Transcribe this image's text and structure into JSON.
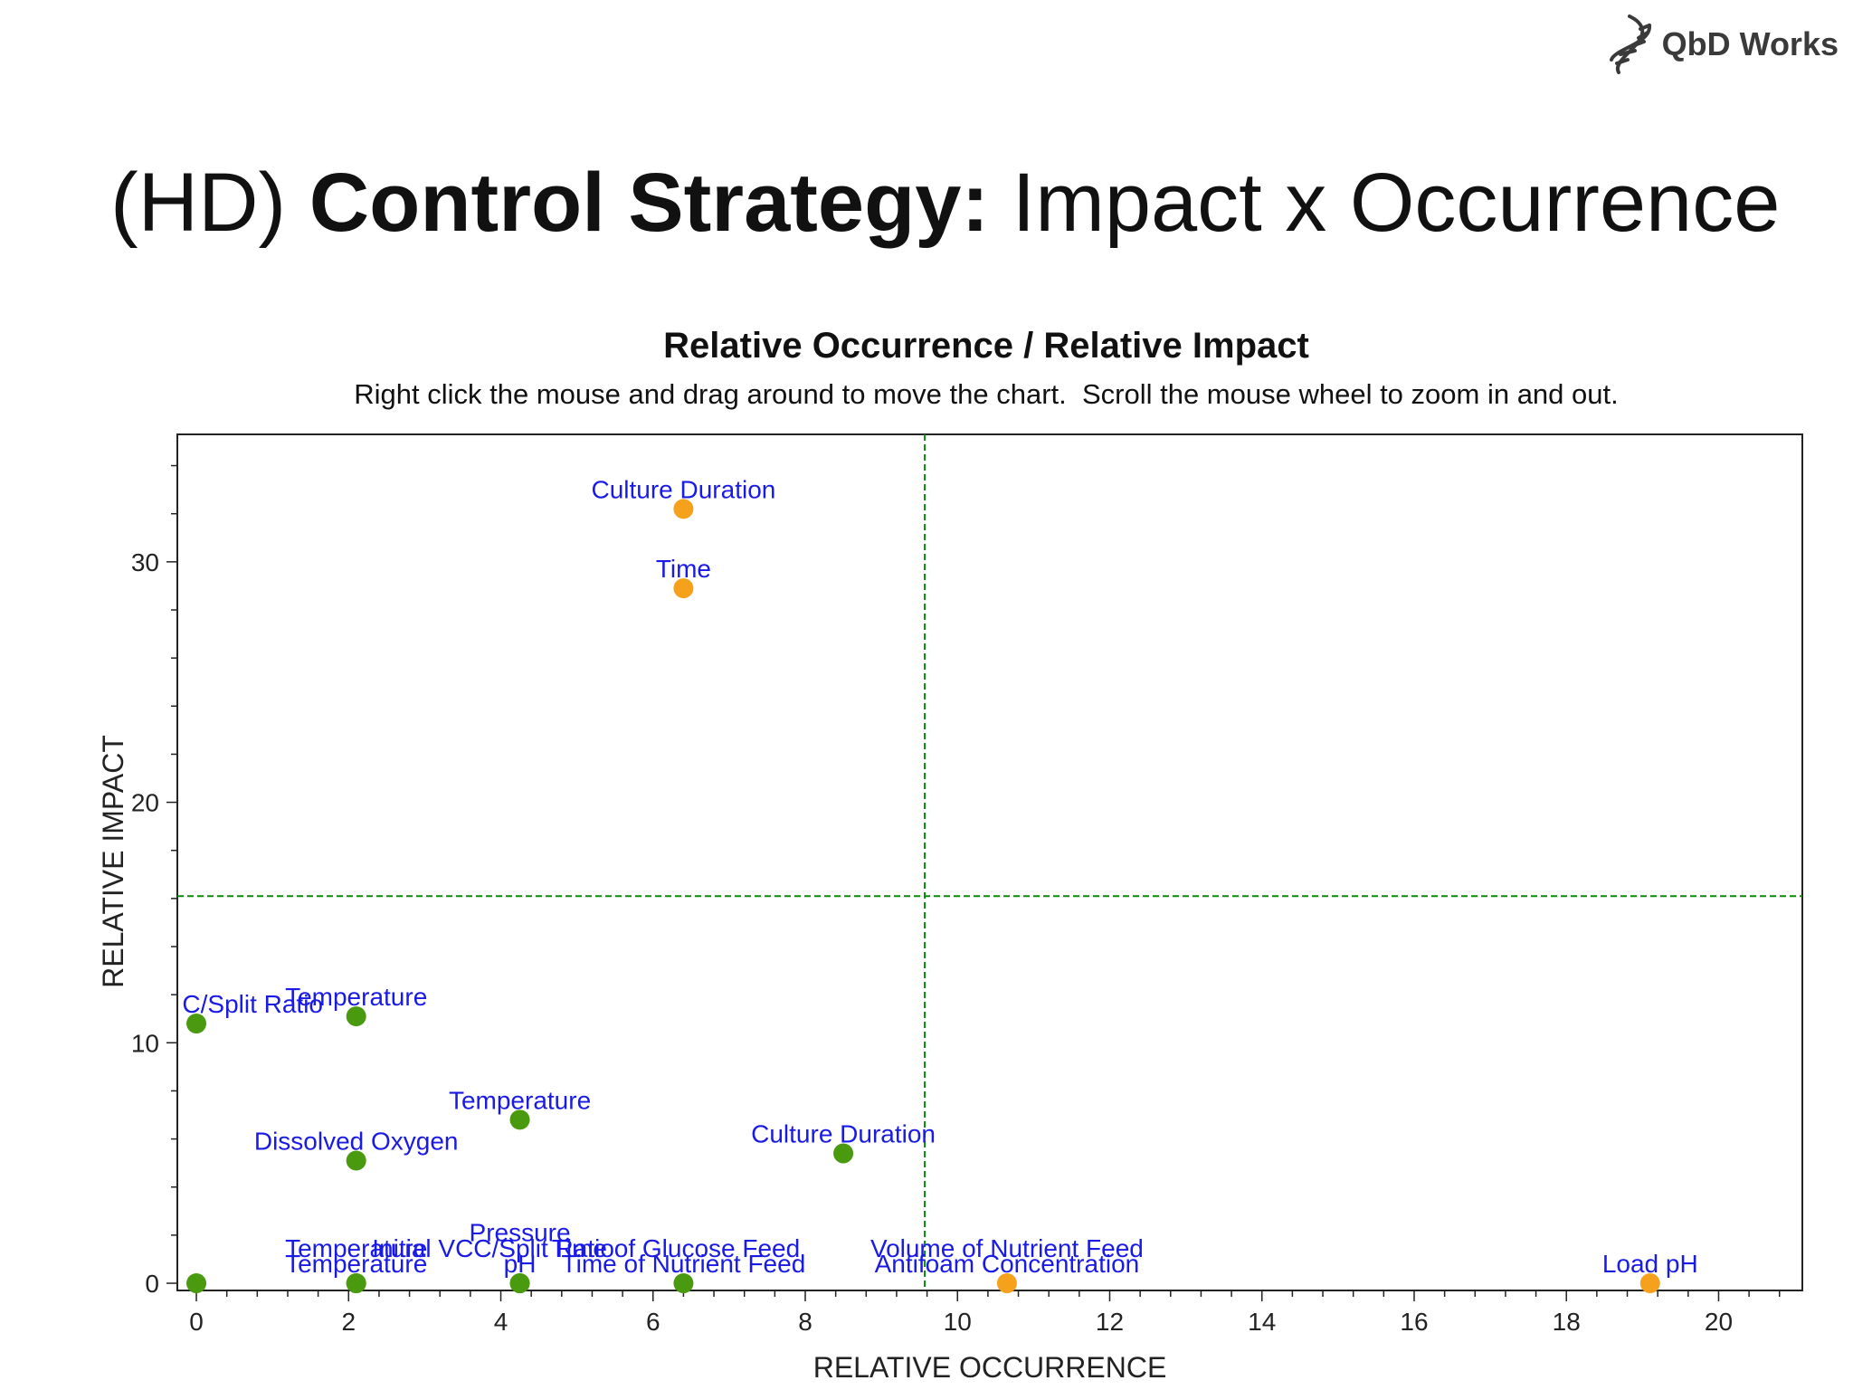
{
  "slide": {
    "logo_text": "QbD Works",
    "title_prefix": "(HD)",
    "title_bold": "Control Strategy:",
    "title_rest": "Impact x Occurrence"
  },
  "chart_data": {
    "type": "scatter",
    "title": "Relative Occurrence / Relative Impact",
    "subtitle": "Right click the mouse and drag around to move the chart.  Scroll the mouse wheel to zoom in and out.",
    "xlabel": "RELATIVE OCCURRENCE",
    "ylabel": "RELATIVE IMPACT",
    "xlim": [
      -0.25,
      21.1
    ],
    "ylim": [
      -0.3,
      35.3
    ],
    "x_ticks": [
      0,
      2,
      4,
      6,
      8,
      10,
      12,
      14,
      16,
      18,
      20
    ],
    "y_ticks": [
      0,
      10,
      20,
      30
    ],
    "reference_lines": {
      "x": 9.57,
      "y": 16.1
    },
    "grid": false,
    "colors": {
      "orange": "#f5a11c",
      "green": "#4a9a10",
      "label": "#1a1ae6",
      "reference": "#0a8a0a"
    },
    "points": [
      {
        "x": 6.4,
        "y": 32.2,
        "label": "Culture Duration",
        "color": "orange"
      },
      {
        "x": 6.4,
        "y": 28.9,
        "label": "Time",
        "color": "orange"
      },
      {
        "x": 0.0,
        "y": 10.8,
        "label": "C/Split Ratio",
        "color": "green",
        "align": "left"
      },
      {
        "x": 2.1,
        "y": 11.1,
        "label": "Temperature",
        "color": "green"
      },
      {
        "x": 4.25,
        "y": 6.8,
        "label": "Temperature",
        "color": "green"
      },
      {
        "x": 2.1,
        "y": 5.1,
        "label": "Dissolved Oxygen",
        "color": "green"
      },
      {
        "x": 8.5,
        "y": 5.4,
        "label": "Culture Duration",
        "color": "green"
      },
      {
        "x": 0.0,
        "y": 0.0,
        "label": "",
        "color": "green"
      },
      {
        "x": 2.1,
        "y": 0.0,
        "label": "Temperature",
        "color": "green"
      },
      {
        "x": 2.1,
        "y": 0.0,
        "label": "Temperature",
        "color": "green",
        "label_dy": -0.65
      },
      {
        "x": 4.25,
        "y": 0.0,
        "label": "pH",
        "color": "green"
      },
      {
        "x": 4.25,
        "y": 0.0,
        "label": "Pressure",
        "color": "green",
        "label_dy": -1.3
      },
      {
        "x": 3.9,
        "y": 0.0,
        "label": "Initial VCC/Split Ratio",
        "color": "green",
        "label_dy": -0.65,
        "dot": false
      },
      {
        "x": 6.4,
        "y": 0.0,
        "label": "Time of Nutrient Feed",
        "color": "green"
      },
      {
        "x": 6.3,
        "y": 0.0,
        "label": "Time of Glucose Feed",
        "color": "green",
        "label_dy": -0.65,
        "dot": false
      },
      {
        "x": 10.65,
        "y": 0.0,
        "label": "Antifoam Concentration",
        "color": "orange"
      },
      {
        "x": 10.65,
        "y": 0.0,
        "label": "Volume of Nutrient Feed",
        "color": "orange",
        "label_dy": -0.65,
        "dot": false
      },
      {
        "x": 19.1,
        "y": 0.0,
        "label": "Load pH",
        "color": "orange"
      }
    ]
  }
}
